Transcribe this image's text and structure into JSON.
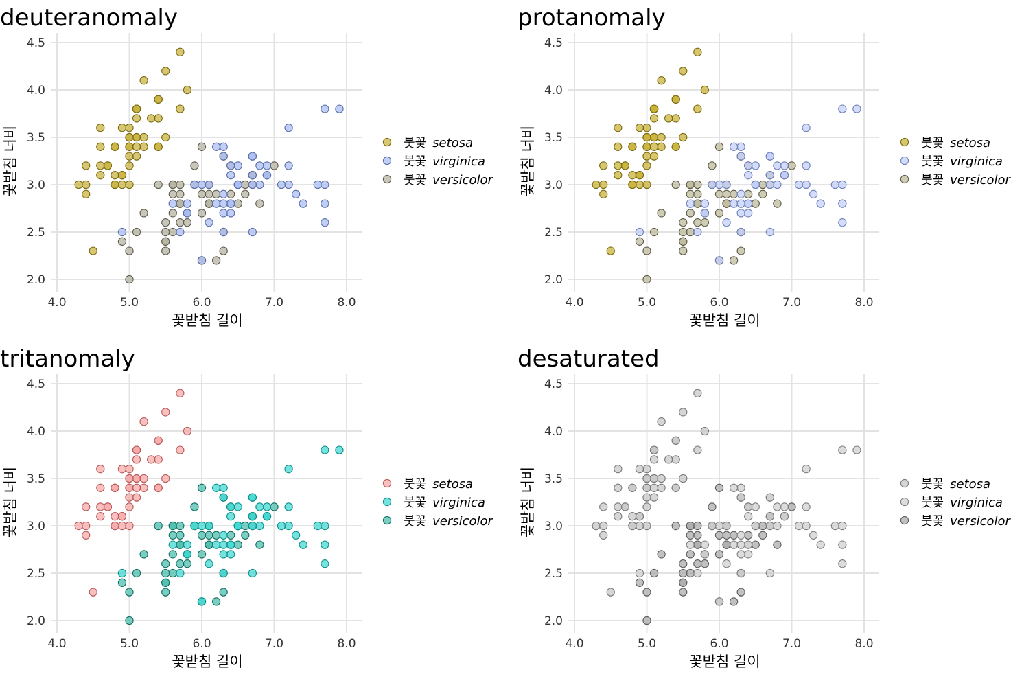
{
  "chart_data": [
    {
      "type": "scatter",
      "title": "deuteranomaly",
      "xlabel": "꽃받침 길이",
      "ylabel": "꽃받침 너비",
      "xlim": [
        4.0,
        8.0
      ],
      "ylim": [
        2.0,
        4.5
      ],
      "xticks": [
        "4.0",
        "5.0",
        "6.0",
        "7.0",
        "8.0"
      ],
      "yticks": [
        "2.0",
        "2.5",
        "3.0",
        "3.5",
        "4.0",
        "4.5"
      ],
      "grid": true,
      "legend_position": "right",
      "series": [
        {
          "name": "setosa",
          "fill": "#c9b23c",
          "stroke": "#7a6a10"
        },
        {
          "name": "virginica",
          "fill": "#a9bbf2",
          "stroke": "#5a6fa8"
        },
        {
          "name": "versicolor",
          "fill": "#b3b09e",
          "stroke": "#5e5c4e"
        }
      ]
    },
    {
      "type": "scatter",
      "title": "protanomaly",
      "xlabel": "꽃받침 길이",
      "ylabel": "꽃받침 너비",
      "xlim": [
        4.0,
        8.0
      ],
      "ylim": [
        2.0,
        4.5
      ],
      "xticks": [
        "4.0",
        "5.0",
        "6.0",
        "7.0",
        "8.0"
      ],
      "yticks": [
        "2.0",
        "2.5",
        "3.0",
        "3.5",
        "4.0",
        "4.5"
      ],
      "grid": true,
      "legend_position": "right",
      "series": [
        {
          "name": "setosa",
          "fill": "#c8b032",
          "stroke": "#7a6a10"
        },
        {
          "name": "virginica",
          "fill": "#c2cffa",
          "stroke": "#6f80b8"
        },
        {
          "name": "versicolor",
          "fill": "#bdb89a",
          "stroke": "#5f5c48"
        }
      ]
    },
    {
      "type": "scatter",
      "title": "tritanomaly",
      "xlabel": "꽃받침 길이",
      "ylabel": "꽃받침 너비",
      "xlim": [
        4.0,
        8.0
      ],
      "ylim": [
        2.0,
        4.5
      ],
      "xticks": [
        "4.0",
        "5.0",
        "6.0",
        "7.0",
        "8.0"
      ],
      "yticks": [
        "2.0",
        "2.5",
        "3.0",
        "3.5",
        "4.0",
        "4.5"
      ],
      "grid": true,
      "legend_position": "right",
      "series": [
        {
          "name": "setosa",
          "fill": "#f6a8a8",
          "stroke": "#b85a5a"
        },
        {
          "name": "virginica",
          "fill": "#3fd8d2",
          "stroke": "#0f8f8a"
        },
        {
          "name": "versicolor",
          "fill": "#46bcaa",
          "stroke": "#136e62"
        }
      ]
    },
    {
      "type": "scatter",
      "title": "desaturated",
      "xlabel": "꽃받침 길이",
      "ylabel": "꽃받침 너비",
      "xlim": [
        4.0,
        8.0
      ],
      "ylim": [
        2.0,
        4.5
      ],
      "xticks": [
        "4.0",
        "5.0",
        "6.0",
        "7.0",
        "8.0"
      ],
      "yticks": [
        "2.0",
        "2.5",
        "3.0",
        "3.5",
        "4.0",
        "4.5"
      ],
      "grid": true,
      "legend_position": "right",
      "series": [
        {
          "name": "setosa",
          "fill": "#c6c6c6",
          "stroke": "#7a7a7a"
        },
        {
          "name": "virginica",
          "fill": "#cfcfcf",
          "stroke": "#808080"
        },
        {
          "name": "versicolor",
          "fill": "#a9a9a9",
          "stroke": "#5c5c5c"
        }
      ]
    }
  ],
  "legend_prefix": "붓꽃",
  "points": {
    "setosa": [
      [
        5.1,
        3.5
      ],
      [
        4.9,
        3.0
      ],
      [
        4.7,
        3.2
      ],
      [
        4.6,
        3.1
      ],
      [
        5.0,
        3.6
      ],
      [
        5.4,
        3.9
      ],
      [
        4.6,
        3.4
      ],
      [
        5.0,
        3.4
      ],
      [
        4.4,
        2.9
      ],
      [
        4.9,
        3.1
      ],
      [
        5.4,
        3.7
      ],
      [
        4.8,
        3.4
      ],
      [
        4.8,
        3.0
      ],
      [
        4.3,
        3.0
      ],
      [
        5.8,
        4.0
      ],
      [
        5.7,
        4.4
      ],
      [
        5.4,
        3.9
      ],
      [
        5.1,
        3.5
      ],
      [
        5.7,
        3.8
      ],
      [
        5.1,
        3.8
      ],
      [
        5.4,
        3.4
      ],
      [
        5.1,
        3.7
      ],
      [
        4.6,
        3.6
      ],
      [
        5.1,
        3.3
      ],
      [
        4.8,
        3.4
      ],
      [
        5.0,
        3.0
      ],
      [
        5.0,
        3.4
      ],
      [
        5.2,
        3.5
      ],
      [
        5.2,
        3.4
      ],
      [
        4.7,
        3.2
      ],
      [
        4.8,
        3.1
      ],
      [
        5.4,
        3.4
      ],
      [
        5.2,
        4.1
      ],
      [
        5.5,
        4.2
      ],
      [
        4.9,
        3.1
      ],
      [
        5.0,
        3.2
      ],
      [
        5.5,
        3.5
      ],
      [
        4.9,
        3.6
      ],
      [
        4.4,
        3.0
      ],
      [
        5.1,
        3.4
      ],
      [
        5.0,
        3.5
      ],
      [
        4.5,
        2.3
      ],
      [
        4.4,
        3.2
      ],
      [
        5.0,
        3.5
      ],
      [
        5.1,
        3.8
      ],
      [
        4.8,
        3.0
      ],
      [
        5.1,
        3.8
      ],
      [
        4.6,
        3.2
      ],
      [
        5.3,
        3.7
      ],
      [
        5.0,
        3.3
      ]
    ],
    "versicolor": [
      [
        7.0,
        3.2
      ],
      [
        6.4,
        3.2
      ],
      [
        6.9,
        3.1
      ],
      [
        5.5,
        2.3
      ],
      [
        6.5,
        2.8
      ],
      [
        5.7,
        2.8
      ],
      [
        6.3,
        3.3
      ],
      [
        4.9,
        2.4
      ],
      [
        6.6,
        2.9
      ],
      [
        5.2,
        2.7
      ],
      [
        5.0,
        2.0
      ],
      [
        5.9,
        3.0
      ],
      [
        6.0,
        2.2
      ],
      [
        6.1,
        2.9
      ],
      [
        5.6,
        2.9
      ],
      [
        6.7,
        3.1
      ],
      [
        5.6,
        3.0
      ],
      [
        5.8,
        2.7
      ],
      [
        6.2,
        2.2
      ],
      [
        5.6,
        2.5
      ],
      [
        5.9,
        3.2
      ],
      [
        6.1,
        2.8
      ],
      [
        6.3,
        2.5
      ],
      [
        6.1,
        2.8
      ],
      [
        6.4,
        2.9
      ],
      [
        6.6,
        3.0
      ],
      [
        6.8,
        2.8
      ],
      [
        6.7,
        3.0
      ],
      [
        6.0,
        2.9
      ],
      [
        5.7,
        2.6
      ],
      [
        5.5,
        2.4
      ],
      [
        5.5,
        2.4
      ],
      [
        5.8,
        2.7
      ],
      [
        6.0,
        2.7
      ],
      [
        5.4,
        3.0
      ],
      [
        6.0,
        3.4
      ],
      [
        6.7,
        3.1
      ],
      [
        6.3,
        2.3
      ],
      [
        5.6,
        3.0
      ],
      [
        5.5,
        2.5
      ],
      [
        5.5,
        2.6
      ],
      [
        6.1,
        3.0
      ],
      [
        5.8,
        2.6
      ],
      [
        5.0,
        2.3
      ],
      [
        5.6,
        2.7
      ],
      [
        5.7,
        3.0
      ],
      [
        5.7,
        2.9
      ],
      [
        6.2,
        2.9
      ],
      [
        5.1,
        2.5
      ],
      [
        5.7,
        2.8
      ]
    ],
    "virginica": [
      [
        6.3,
        3.3
      ],
      [
        5.8,
        2.7
      ],
      [
        7.1,
        3.0
      ],
      [
        6.3,
        2.9
      ],
      [
        6.5,
        3.0
      ],
      [
        7.6,
        3.0
      ],
      [
        4.9,
        2.5
      ],
      [
        7.3,
        2.9
      ],
      [
        6.7,
        2.5
      ],
      [
        7.2,
        3.6
      ],
      [
        6.5,
        3.2
      ],
      [
        6.4,
        2.7
      ],
      [
        6.8,
        3.0
      ],
      [
        5.7,
        2.5
      ],
      [
        5.8,
        2.8
      ],
      [
        6.4,
        3.2
      ],
      [
        6.5,
        3.0
      ],
      [
        7.7,
        3.8
      ],
      [
        7.7,
        2.6
      ],
      [
        6.0,
        2.2
      ],
      [
        6.9,
        3.2
      ],
      [
        5.6,
        2.8
      ],
      [
        7.7,
        2.8
      ],
      [
        6.3,
        2.7
      ],
      [
        6.7,
        3.3
      ],
      [
        7.2,
        3.2
      ],
      [
        6.2,
        2.8
      ],
      [
        6.1,
        3.0
      ],
      [
        6.4,
        2.8
      ],
      [
        7.2,
        3.0
      ],
      [
        7.4,
        2.8
      ],
      [
        7.9,
        3.8
      ],
      [
        6.4,
        2.8
      ],
      [
        6.3,
        2.8
      ],
      [
        6.1,
        2.6
      ],
      [
        7.7,
        3.0
      ],
      [
        6.3,
        3.4
      ],
      [
        6.4,
        3.1
      ],
      [
        6.0,
        3.0
      ],
      [
        6.9,
        3.1
      ],
      [
        6.7,
        3.1
      ],
      [
        6.9,
        3.1
      ],
      [
        5.8,
        2.7
      ],
      [
        6.8,
        3.2
      ],
      [
        6.7,
        3.3
      ],
      [
        6.7,
        3.0
      ],
      [
        6.3,
        2.5
      ],
      [
        6.5,
        3.0
      ],
      [
        6.2,
        3.4
      ],
      [
        5.9,
        3.0
      ]
    ]
  }
}
